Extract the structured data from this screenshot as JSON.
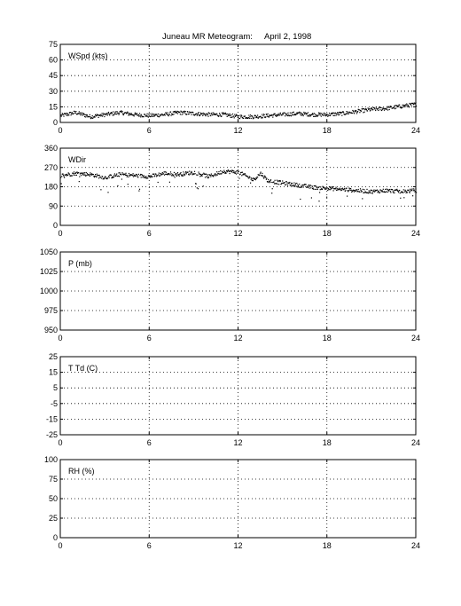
{
  "title_left": "Juneau MR Meteogram:",
  "title_right": "April  2, 1998",
  "chart_data": [
    {
      "type": "scatter",
      "label": "WSpd (kts)",
      "xlim": [
        0,
        24
      ],
      "xticks": [
        0,
        6,
        12,
        18,
        24
      ],
      "ylim": [
        0,
        75
      ],
      "yticks": [
        0,
        15,
        30,
        45,
        60,
        75
      ],
      "grid": true,
      "series": [
        {
          "x": [
            0,
            1,
            2,
            3,
            4,
            5,
            6,
            7,
            8,
            9,
            10,
            11,
            12,
            13,
            14,
            15,
            16,
            17,
            18,
            19,
            20,
            21,
            22,
            23,
            24
          ],
          "y": [
            7,
            10,
            6,
            8,
            10,
            8,
            7,
            8,
            10,
            9,
            8,
            8,
            6,
            6,
            7,
            8,
            9,
            8,
            8,
            9,
            11,
            13,
            14,
            16,
            18
          ]
        }
      ]
    },
    {
      "type": "scatter",
      "label": "WDir",
      "xlim": [
        0,
        24
      ],
      "xticks": [
        0,
        6,
        12,
        18,
        24
      ],
      "ylim": [
        0,
        360
      ],
      "yticks": [
        0,
        90,
        180,
        270,
        360
      ],
      "grid": true,
      "series": [
        {
          "x": [
            0,
            1,
            2,
            3,
            4,
            5,
            6,
            7,
            8,
            9,
            10,
            11,
            12,
            13,
            13.5,
            14,
            15,
            16,
            17,
            18,
            19,
            20,
            21,
            22,
            23,
            24
          ],
          "y": [
            235,
            245,
            240,
            225,
            240,
            235,
            230,
            245,
            240,
            250,
            230,
            255,
            250,
            215,
            245,
            210,
            200,
            190,
            180,
            175,
            170,
            165,
            160,
            165,
            160,
            165
          ]
        }
      ]
    },
    {
      "type": "scatter",
      "label": "P (mb)",
      "xlim": [
        0,
        24
      ],
      "xticks": [
        0,
        6,
        12,
        18,
        24
      ],
      "ylim": [
        950,
        1050
      ],
      "yticks": [
        950,
        975,
        1000,
        1025,
        1050
      ],
      "grid": true,
      "series": []
    },
    {
      "type": "scatter",
      "label": "T Td (C)",
      "xlim": [
        0,
        24
      ],
      "xticks": [
        0,
        6,
        12,
        18,
        24
      ],
      "ylim": [
        -25,
        25
      ],
      "yticks": [
        -25,
        -15,
        -5,
        5,
        15,
        25
      ],
      "grid": true,
      "series": []
    },
    {
      "type": "scatter",
      "label": "RH (%)",
      "xlim": [
        0,
        24
      ],
      "xticks": [
        0,
        6,
        12,
        18,
        24
      ],
      "ylim": [
        0,
        100
      ],
      "yticks": [
        0,
        25,
        50,
        75,
        100
      ],
      "grid": true,
      "series": []
    }
  ]
}
